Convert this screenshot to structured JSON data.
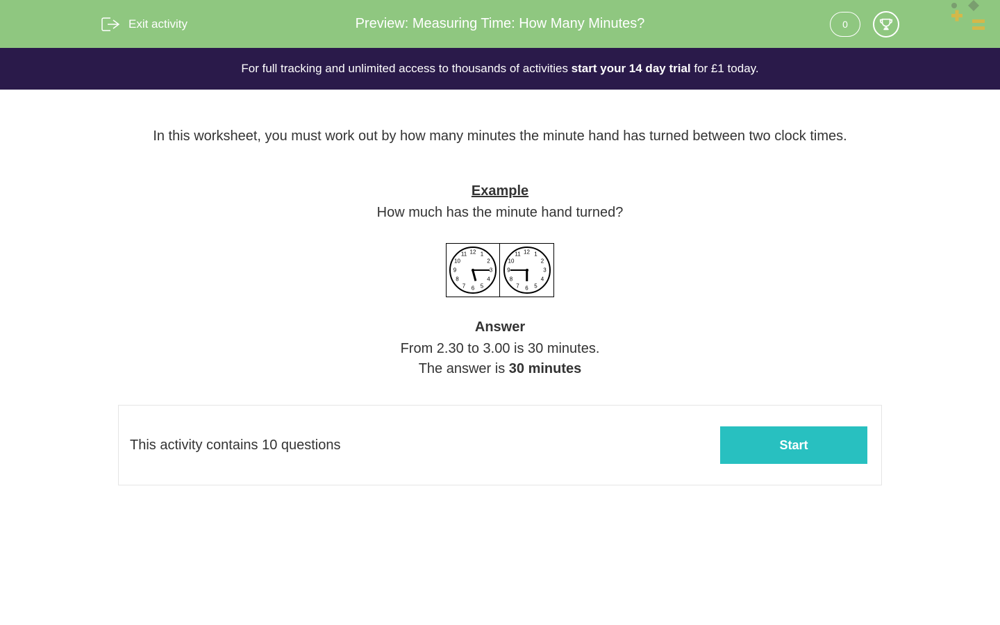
{
  "header": {
    "exit_label": "Exit activity",
    "title": "Preview: Measuring Time: How Many Minutes?",
    "score": "0",
    "bg_color": "#8fc780"
  },
  "banner": {
    "text_before": "For full tracking and unlimited access to thousands of activities ",
    "text_bold": "start your 14 day trial",
    "text_after": " for £1 today.",
    "bg_color": "#2a1a4a"
  },
  "content": {
    "intro": "In this worksheet, you must work out by how many minutes the minute hand has turned between two clock times.",
    "example_label": "Example",
    "example_question": "How much has the minute hand turned?",
    "clocks": [
      {
        "hour_angle": 165,
        "minute_angle": 90
      },
      {
        "hour_angle": 180,
        "minute_angle": 270
      }
    ],
    "clock_numbers": [
      "12",
      "1",
      "2",
      "3",
      "4",
      "5",
      "6",
      "7",
      "8",
      "9",
      "10",
      "11"
    ],
    "answer_label": "Answer",
    "answer_line1": "From 2.30 to 3.00 is 30 minutes.",
    "answer_line2_before": "The answer is ",
    "answer_line2_bold": "30 minutes"
  },
  "footer": {
    "count_text": "This activity contains 10 questions",
    "start_label": "Start",
    "start_bg": "#28c0c0"
  }
}
